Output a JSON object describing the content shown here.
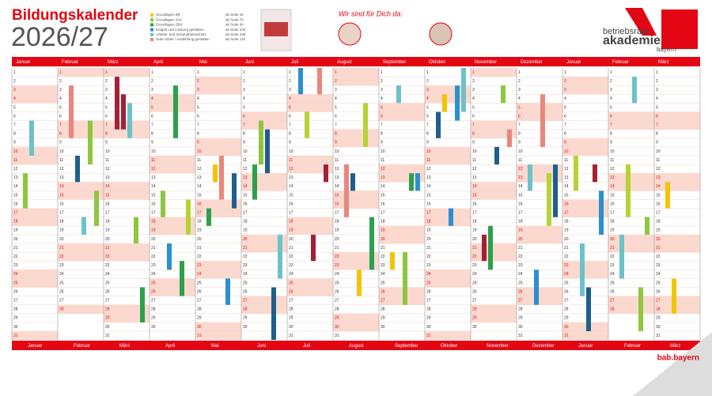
{
  "header": {
    "title": "Bildungskalender",
    "year": "2026/27"
  },
  "legend": [
    {
      "label": "Grundlagen BR",
      "pages": "ab Seite 42",
      "color": "#f2c500"
    },
    {
      "label": "Grundlagen JAV",
      "pages": "ab Seite 76",
      "color": "#8dc63f"
    },
    {
      "label": "Grundlagen SBV",
      "pages": "ab Seite 94",
      "color": "#2ba14b"
    },
    {
      "label": "Entgelt und Leistung gestalten",
      "pages": "ab Seite 100",
      "color": "#2b8fd0"
    },
    {
      "label": "Arbeits- und Gesundheitsschutz",
      "pages": "ab Seite 108",
      "color": "#6cc2c9"
    },
    {
      "label": "Gute Arbeit / Ausbildung gestalten",
      "pages": "ab Seite 118",
      "color": "#e8877a"
    }
  ],
  "contact": {
    "heading": "Wir sind für Dich da:"
  },
  "logo": {
    "line1": "betriebsräte",
    "line2": "akademie",
    "line3": "bayern"
  },
  "calendar": {
    "months": [
      "Januar",
      "Februar",
      "März",
      "April",
      "Mai",
      "Juni",
      "Juli",
      "August",
      "September",
      "Oktober",
      "November",
      "Dezember",
      "Januar",
      "Februar",
      "März"
    ],
    "day_numbers": [
      1,
      2,
      3,
      4,
      5,
      6,
      7,
      8,
      9,
      10,
      11,
      12,
      13,
      14,
      15,
      16,
      17,
      18,
      19,
      20,
      21,
      22,
      23,
      24,
      25,
      26,
      27,
      28,
      29,
      30,
      31
    ]
  },
  "footer": {
    "site": "bab.bayern"
  }
}
